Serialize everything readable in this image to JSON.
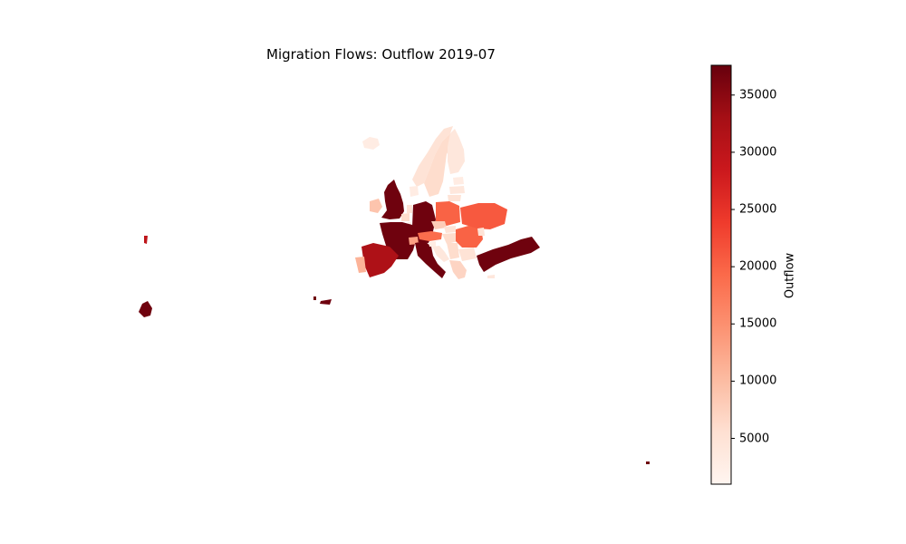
{
  "title": "Migration Flows: Outflow 2019-07",
  "chart_data": {
    "type": "choropleth",
    "title": "Migration Flows: Outflow 2019-07",
    "colormap": "Reds",
    "colorbar": {
      "label": "Outflow",
      "vmin": 1000,
      "vmax": 37600,
      "ticks": [
        5000,
        10000,
        15000,
        20000,
        25000,
        30000,
        35000
      ]
    },
    "regions": [
      {
        "name": "United Kingdom",
        "value": 37000
      },
      {
        "name": "Ireland",
        "value": 9000
      },
      {
        "name": "Iceland",
        "value": 3000
      },
      {
        "name": "Norway",
        "value": 5000
      },
      {
        "name": "Sweden",
        "value": 6000
      },
      {
        "name": "Finland",
        "value": 4000
      },
      {
        "name": "Estonia",
        "value": 3000
      },
      {
        "name": "Latvia",
        "value": 4000
      },
      {
        "name": "Lithuania",
        "value": 5000
      },
      {
        "name": "Denmark",
        "value": 3000
      },
      {
        "name": "Netherlands",
        "value": 5000
      },
      {
        "name": "Belgium",
        "value": 6000
      },
      {
        "name": "Luxembourg",
        "value": 2000
      },
      {
        "name": "France",
        "value": 37000
      },
      {
        "name": "Germany",
        "value": 37000
      },
      {
        "name": "Poland",
        "value": 20000
      },
      {
        "name": "Czechia",
        "value": 8000
      },
      {
        "name": "Slovakia",
        "value": 5000
      },
      {
        "name": "Austria",
        "value": 19000
      },
      {
        "name": "Switzerland",
        "value": 13000
      },
      {
        "name": "Italy",
        "value": 37000
      },
      {
        "name": "Slovenia",
        "value": 3000
      },
      {
        "name": "Croatia",
        "value": 4000
      },
      {
        "name": "Hungary",
        "value": 6000
      },
      {
        "name": "Romania",
        "value": 20000
      },
      {
        "name": "Ukraine",
        "value": 21000
      },
      {
        "name": "Moldova",
        "value": 5000
      },
      {
        "name": "Bulgaria",
        "value": 5000
      },
      {
        "name": "Serbia",
        "value": 6000
      },
      {
        "name": "Greece",
        "value": 7000
      },
      {
        "name": "Turkey",
        "value": 37000
      },
      {
        "name": "Cyprus",
        "value": 4000
      },
      {
        "name": "Spain",
        "value": 32000
      },
      {
        "name": "Portugal",
        "value": 11000
      },
      {
        "name": "Malta",
        "value": 37000
      },
      {
        "name": "Canary Islands",
        "value": 37000
      },
      {
        "name": "Azores",
        "value": 30000
      },
      {
        "name": "Madeira",
        "value": 37000
      },
      {
        "name": "Reunion",
        "value": 37000
      }
    ]
  }
}
